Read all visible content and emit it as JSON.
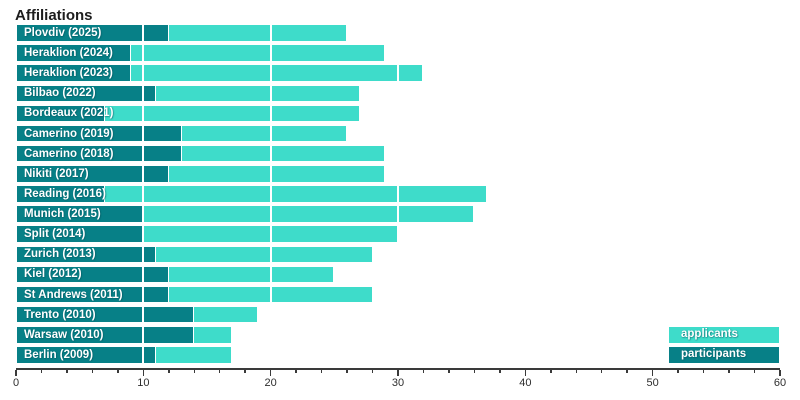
{
  "chart_data": {
    "type": "bar",
    "orientation": "horizontal",
    "overlaid_series": true,
    "title": "Affiliations",
    "categories": [
      "Plovdiv (2025)",
      "Heraklion (2024)",
      "Heraklion (2023)",
      "Bilbao (2022)",
      "Bordeaux (2021)",
      "Camerino (2019)",
      "Camerino (2018)",
      "Nikiti (2017)",
      "Reading (2016)",
      "Munich (2015)",
      "Split (2014)",
      "Zurich (2013)",
      "Kiel (2012)",
      "St Andrews (2011)",
      "Trento (2010)",
      "Warsaw (2010)",
      "Berlin (2009)"
    ],
    "series": [
      {
        "name": "applicants",
        "color": "#3EDCCA",
        "values": [
          26,
          29,
          32,
          27,
          27,
          26,
          29,
          29,
          37,
          36,
          30,
          28,
          25,
          28,
          19,
          17,
          17
        ]
      },
      {
        "name": "participants",
        "color": "#078087",
        "values": [
          12,
          9,
          9,
          11,
          7,
          13,
          13,
          12,
          7,
          10,
          10,
          11,
          12,
          12,
          14,
          14,
          11
        ]
      }
    ],
    "xlabel": "",
    "ylabel": "",
    "xlim": [
      0,
      60
    ],
    "x_major_ticks": [
      0,
      10,
      20,
      30,
      40,
      50,
      60
    ],
    "x_minor_tick_step": 2,
    "grid": "white vertical gridlines at major ticks drawn over bars",
    "legend_position": "bottom-right",
    "category_labels_inside_bars": true
  },
  "colors": {
    "applicants_fill": "#3EDCCA",
    "participants_fill": "#078087",
    "bar_stroke": "#ffffff",
    "title_text": "#1d1d1d",
    "axis": "#3a3a3a",
    "label_text": "#ffffff",
    "background": "#ffffff"
  }
}
